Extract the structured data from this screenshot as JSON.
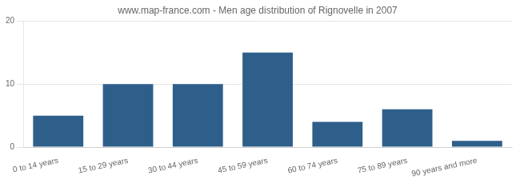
{
  "chart_data": {
    "type": "bar",
    "title": "www.map-france.com - Men age distribution of Rignovelle in 2007",
    "categories": [
      "0 to 14 years",
      "15 to 29 years",
      "30 to 44 years",
      "45 to 59 years",
      "60 to 74 years",
      "75 to 89 years",
      "90 years and more"
    ],
    "values": [
      5,
      10,
      10,
      15,
      4,
      6,
      1
    ],
    "color": "#2E5F8A",
    "ylim": [
      0,
      20
    ],
    "yticks": [
      0,
      10,
      20
    ],
    "grid": true
  }
}
